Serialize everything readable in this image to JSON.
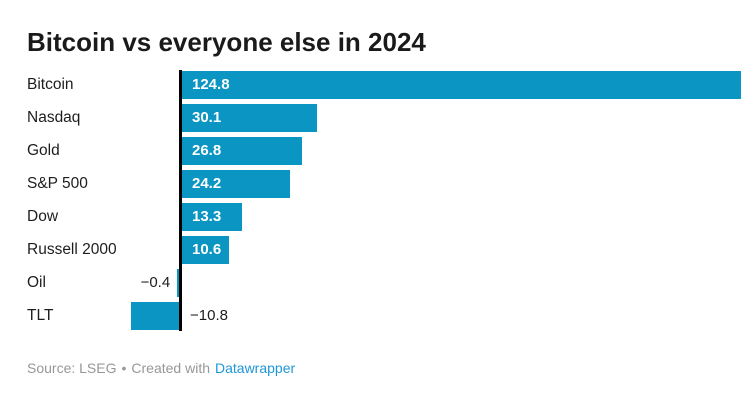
{
  "title": "Bitcoin vs everyone else in 2024",
  "chart_data": {
    "type": "bar",
    "orientation": "horizontal",
    "title": "Bitcoin vs everyone else in 2024",
    "categories": [
      "Bitcoin",
      "Nasdaq",
      "Gold",
      "S&P 500",
      "Dow",
      "Russell 2000",
      "Oil",
      "TLT"
    ],
    "values": [
      124.8,
      30.1,
      26.8,
      24.2,
      13.3,
      10.6,
      -0.4,
      -10.8
    ],
    "value_labels": [
      "124.8",
      "30.1",
      "26.8",
      "24.2",
      "13.3",
      "10.6",
      "−0.4",
      "−10.8"
    ],
    "xlabel": "",
    "ylabel": "",
    "xlim": [
      -10.8,
      124.8
    ],
    "grid": false,
    "legend": false,
    "zero_line": true
  },
  "colors": {
    "bar": "#0b95c2",
    "axis": "#000000",
    "title": "#1a1a1a",
    "label": "#1d1d1d",
    "value_inside": "#ffffff",
    "footer_text": "#979797",
    "link": "#1e96d9",
    "background": "#ffffff"
  },
  "footer": {
    "source_text": "Source: LSEG",
    "separator": "•",
    "attribution_text": "Created with",
    "link_label": "Datawrapper"
  }
}
